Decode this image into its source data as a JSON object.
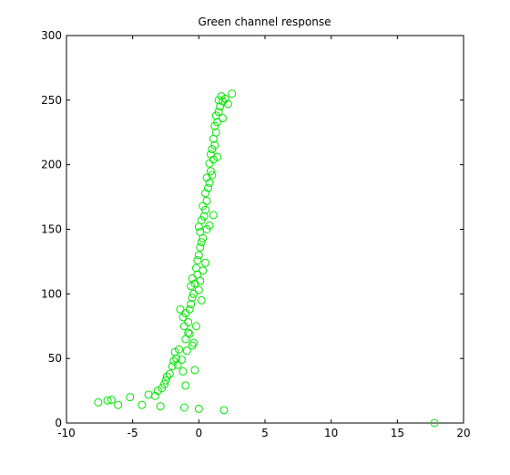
{
  "chart_data": {
    "type": "scatter",
    "title": "Green channel response",
    "xlabel": "",
    "ylabel": "",
    "xlim": [
      -10,
      20
    ],
    "ylim": [
      0,
      300
    ],
    "xticks": [
      -10,
      -5,
      0,
      5,
      10,
      15,
      20
    ],
    "yticks": [
      0,
      50,
      100,
      150,
      200,
      250,
      300
    ],
    "grid": false,
    "marker": "circle-open",
    "colors": {
      "series": "#00e600",
      "axes": "#000000",
      "background": "#ffffff"
    },
    "series": [
      {
        "points": [
          [
            -7.6,
            16
          ],
          [
            -6.9,
            17.5
          ],
          [
            -6.6,
            18
          ],
          [
            -6.1,
            14
          ],
          [
            -5.2,
            20
          ],
          [
            -4.3,
            14
          ],
          [
            -3.8,
            22
          ],
          [
            -3.3,
            21
          ],
          [
            -3.1,
            25
          ],
          [
            -2.9,
            13
          ],
          [
            -2.8,
            27
          ],
          [
            -2.6,
            30
          ],
          [
            -2.5,
            33
          ],
          [
            -2.4,
            36
          ],
          [
            -2.2,
            38
          ],
          [
            -2.0,
            44
          ],
          [
            -1.9,
            48
          ],
          [
            -1.8,
            55
          ],
          [
            -1.7,
            50
          ],
          [
            -1.6,
            45
          ],
          [
            -1.5,
            57
          ],
          [
            -1.3,
            49
          ],
          [
            -1.2,
            40
          ],
          [
            -1.1,
            12
          ],
          [
            -1.0,
            29
          ],
          [
            -1.0,
            65
          ],
          [
            -0.9,
            56
          ],
          [
            -0.8,
            70
          ],
          [
            -0.8,
            78
          ],
          [
            -1.1,
            75
          ],
          [
            -1.2,
            82
          ],
          [
            -1.0,
            85
          ],
          [
            -0.7,
            88
          ],
          [
            -0.6,
            92
          ],
          [
            -0.5,
            60
          ],
          [
            -0.4,
            62
          ],
          [
            -0.3,
            41
          ],
          [
            -0.5,
            97
          ],
          [
            -0.4,
            100
          ],
          [
            -0.6,
            106
          ],
          [
            -0.5,
            112
          ],
          [
            -0.3,
            108
          ],
          [
            -0.1,
            115
          ],
          [
            0.0,
            103
          ],
          [
            0.1,
            110
          ],
          [
            0.2,
            95
          ],
          [
            -0.2,
            120
          ],
          [
            -0.1,
            126
          ],
          [
            0.0,
            130
          ],
          [
            0.1,
            136
          ],
          [
            0.2,
            140
          ],
          [
            0.3,
            143
          ],
          [
            0.1,
            148
          ],
          [
            0.0,
            152
          ],
          [
            0.2,
            157
          ],
          [
            0.4,
            160
          ],
          [
            0.5,
            165
          ],
          [
            0.3,
            168
          ],
          [
            0.6,
            150
          ],
          [
            0.8,
            153
          ],
          [
            0.6,
            172
          ],
          [
            0.5,
            178
          ],
          [
            0.7,
            182
          ],
          [
            0.8,
            186
          ],
          [
            0.6,
            190
          ],
          [
            0.9,
            195
          ],
          [
            1.0,
            192
          ],
          [
            0.8,
            201
          ],
          [
            1.1,
            204
          ],
          [
            0.9,
            208
          ],
          [
            1.0,
            212
          ],
          [
            1.2,
            215
          ],
          [
            1.1,
            220
          ],
          [
            1.4,
            206
          ],
          [
            1.3,
            225
          ],
          [
            1.2,
            230
          ],
          [
            1.4,
            233
          ],
          [
            1.3,
            238
          ],
          [
            1.5,
            241
          ],
          [
            1.6,
            245
          ],
          [
            1.5,
            250
          ],
          [
            1.7,
            253
          ],
          [
            1.8,
            249
          ],
          [
            2.0,
            251
          ],
          [
            2.2,
            247
          ],
          [
            2.5,
            255
          ],
          [
            1.8,
            236
          ],
          [
            1.1,
            161
          ],
          [
            0.3,
            118
          ],
          [
            0.5,
            124
          ],
          [
            -1.4,
            88
          ],
          [
            -0.7,
            69
          ],
          [
            -0.2,
            75
          ],
          [
            0.0,
            11
          ],
          [
            1.9,
            10
          ],
          [
            17.8,
            0
          ]
        ]
      }
    ]
  }
}
